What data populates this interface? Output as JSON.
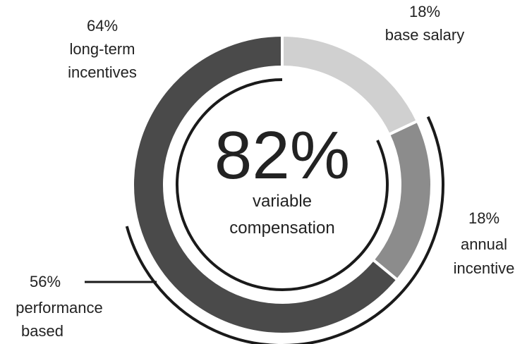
{
  "chart_data": {
    "type": "pie",
    "variant": "donut",
    "slices": [
      {
        "label": "base salary",
        "value": 18,
        "value_text": "18%",
        "color": "#d0d0d0"
      },
      {
        "label": "annual incentive",
        "value": 18,
        "value_text": "18%",
        "color": "#8c8c8c"
      },
      {
        "label": "long-term incentives",
        "value": 64,
        "value_text": "64%",
        "color": "#4a4a4a"
      }
    ],
    "center": {
      "value_text": "82%",
      "line1": "variable",
      "line2": "compensation"
    },
    "brackets": [
      {
        "label_lines": [
          "56%",
          "performance",
          "based"
        ],
        "covers": [
          "annual incentive",
          "long-term incentives"
        ]
      },
      {
        "label_lines": [],
        "covers": [
          "variable compensation"
        ]
      }
    ],
    "long_term_label_lines": [
      "64%",
      "long-term",
      "incentives"
    ],
    "base_label_lines": [
      "18%",
      "base salary"
    ],
    "annual_label_lines": [
      "18%",
      "annual",
      "incentive"
    ],
    "accent_line_color": "#1a1a1a"
  }
}
